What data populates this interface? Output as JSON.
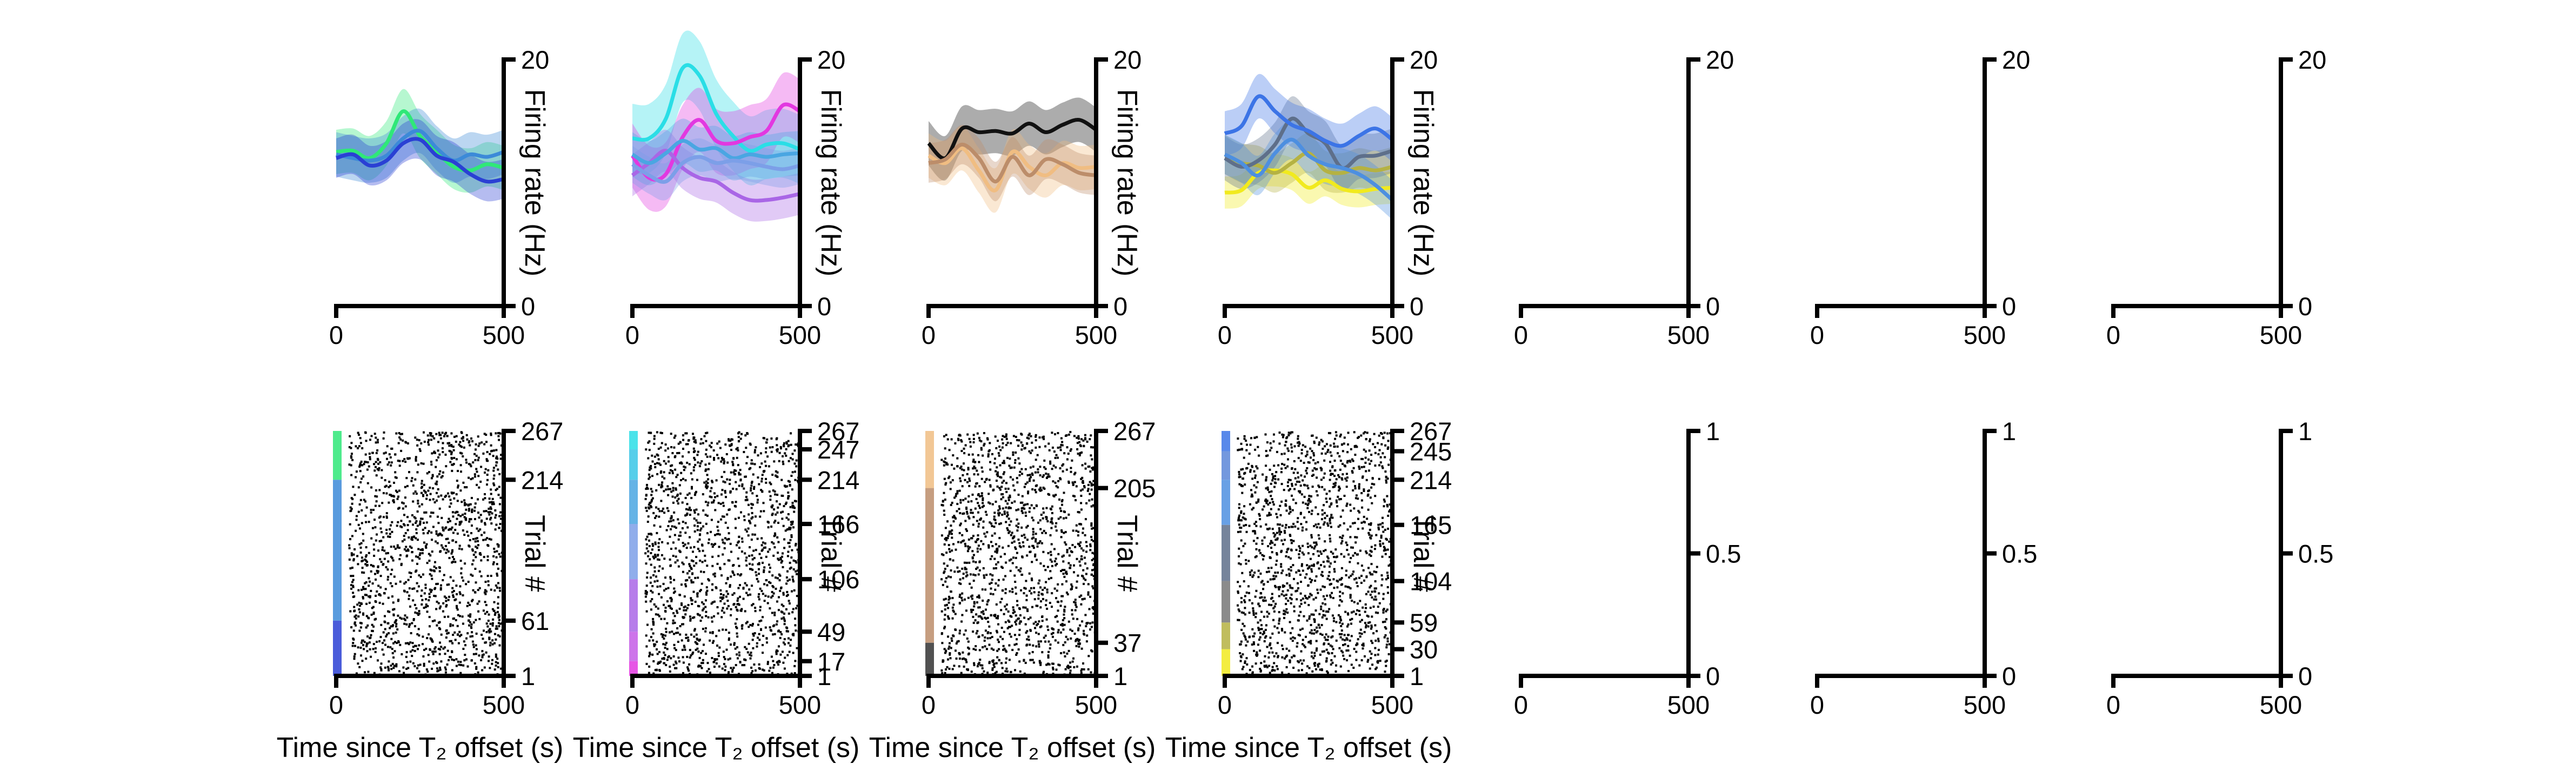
{
  "chart_data": {
    "type": "line",
    "layout": "2 rows x 7 columns",
    "top_row": {
      "ylabel": "Firing rate (Hz)",
      "ylim": [
        0,
        20
      ],
      "yticks": [
        "0",
        "20"
      ],
      "xlim": [
        0,
        500
      ],
      "xticks": [
        "0",
        "500"
      ],
      "panels": [
        {
          "series": [
            {
              "color": "#2fe878",
              "x": [
                0,
                50,
                100,
                150,
                200,
                250,
                300,
                350,
                400,
                450,
                500
              ],
              "y": [
                12.5,
                12.6,
                12.0,
                13.2,
                15.8,
                13.8,
                12.5,
                11.3,
                11.0,
                11.5,
                11.2
              ],
              "band": 1.8
            },
            {
              "color": "#3c8ad8",
              "x": [
                0,
                50,
                100,
                150,
                200,
                250,
                300,
                350,
                400,
                450,
                500
              ],
              "y": [
                12.3,
                12.0,
                11.8,
                12.2,
                13.6,
                14.2,
                12.8,
                11.8,
                12.3,
                12.1,
                12.5
              ],
              "band": 1.8
            },
            {
              "color": "#2a40d4",
              "x": [
                0,
                50,
                100,
                150,
                200,
                250,
                300,
                350,
                400,
                450,
                500
              ],
              "y": [
                12.0,
                12.3,
                11.4,
                11.8,
                13.2,
                13.5,
                12.2,
                11.7,
                10.7,
                10.1,
                10.3
              ],
              "band": 1.6
            }
          ]
        },
        {
          "series": [
            {
              "color": "#2adee6",
              "x": [
                0,
                50,
                100,
                150,
                200,
                250,
                300,
                350,
                400,
                450,
                500
              ],
              "y": [
                13.6,
                13.6,
                15.2,
                19.3,
                18.7,
                15.6,
                13.8,
                12.6,
                13.1,
                13.2,
                12.7
              ],
              "band": 2.8
            },
            {
              "color": "#e238e0",
              "x": [
                0,
                50,
                100,
                150,
                200,
                250,
                300,
                350,
                400,
                450,
                500
              ],
              "y": [
                12.2,
                10.4,
                10.7,
                13.7,
                15.1,
                13.4,
                13.2,
                13.7,
                14.2,
                16.3,
                15.8
              ],
              "band": 2.6
            },
            {
              "color": "#a966e6",
              "x": [
                0,
                50,
                100,
                150,
                200,
                250,
                300,
                350,
                400,
                450,
                500
              ],
              "y": [
                10.6,
                11.6,
                12.6,
                11.2,
                10.4,
                10.1,
                9.2,
                8.6,
                8.6,
                8.8,
                9.1
              ],
              "band": 1.7
            },
            {
              "color": "#4aa6e2",
              "x": [
                0,
                50,
                100,
                150,
                200,
                250,
                300,
                350,
                400,
                450,
                500
              ],
              "y": [
                12.3,
                11.6,
                12.4,
                13.4,
                12.7,
                12.8,
                12.0,
                12.3,
                12.1,
                12.3,
                12.4
              ],
              "band": 1.8
            },
            {
              "color": "#7c9fe8",
              "x": [
                0,
                50,
                100,
                150,
                200,
                250,
                300,
                350,
                400,
                450,
                500
              ],
              "y": [
                11.5,
                10.6,
                10.1,
                11.6,
                12.1,
                11.6,
                11.8,
                11.6,
                11.3,
                11.1,
                11.4
              ],
              "band": 1.5
            }
          ]
        },
        {
          "series": [
            {
              "color": "#111111",
              "x": [
                0,
                50,
                100,
                150,
                200,
                250,
                300,
                350,
                400,
                450,
                500
              ],
              "y": [
                13.2,
                12.0,
                14.4,
                14.1,
                14.2,
                14.0,
                14.8,
                14.1,
                14.7,
                15.1,
                14.3
              ],
              "band": 1.8
            },
            {
              "color": "#f0bd82",
              "x": [
                0,
                50,
                100,
                150,
                200,
                250,
                300,
                350,
                400,
                450,
                500
              ],
              "y": [
                12.2,
                11.6,
                12.8,
                11.0,
                9.4,
                12.5,
                11.3,
                10.6,
                11.6,
                11.2,
                11.3
              ],
              "band": 1.8
            },
            {
              "color": "#bc8d6a",
              "x": [
                0,
                50,
                100,
                150,
                200,
                250,
                300,
                350,
                400,
                450,
                500
              ],
              "y": [
                11.6,
                11.9,
                13.1,
                12.0,
                10.1,
                12.1,
                10.6,
                11.9,
                11.5,
                10.8,
                10.6
              ],
              "band": 1.6
            }
          ]
        },
        {
          "series": [
            {
              "color": "#f1ea1e",
              "x": [
                0,
                50,
                100,
                150,
                200,
                250,
                300,
                350,
                400,
                450,
                500
              ],
              "y": [
                9.2,
                9.4,
                10.8,
                11.0,
                10.7,
                9.6,
                10.2,
                9.5,
                9.3,
                9.5,
                9.6
              ],
              "band": 1.3
            },
            {
              "color": "#b5b242",
              "x": [
                0,
                50,
                100,
                150,
                200,
                250,
                300,
                350,
                400,
                450,
                500
              ],
              "y": [
                12.3,
                11.6,
                11.4,
                10.8,
                11.6,
                12.4,
                11.0,
                10.8,
                11.2,
                11.0,
                11.3
              ],
              "band": 1.6
            },
            {
              "color": "#5e6f8a",
              "x": [
                0,
                50,
                100,
                150,
                200,
                250,
                300,
                350,
                400,
                450,
                500
              ],
              "y": [
                12.0,
                11.3,
                11.8,
                13.1,
                15.2,
                14.0,
                13.2,
                11.2,
                12.1,
                12.2,
                12.6
              ],
              "band": 1.8
            },
            {
              "color": "#3c74e6",
              "x": [
                0,
                50,
                100,
                150,
                200,
                250,
                300,
                350,
                400,
                450,
                500
              ],
              "y": [
                14.0,
                14.6,
                17.0,
                15.8,
                14.7,
                14.2,
                13.4,
                13.0,
                13.8,
                14.4,
                13.5
              ],
              "band": 1.8
            },
            {
              "color": "#4d8fe0",
              "x": [
                0,
                50,
                100,
                150,
                200,
                250,
                300,
                350,
                400,
                450,
                500
              ],
              "y": [
                12.3,
                11.6,
                10.6,
                12.4,
                13.5,
                12.2,
                11.5,
                11.2,
                10.7,
                9.8,
                8.6
              ],
              "band": 1.6
            }
          ]
        },
        {
          "series": []
        },
        {
          "series": []
        },
        {
          "series": []
        }
      ]
    },
    "bottom_row": {
      "ylabel": "Trial #",
      "xlim": [
        0,
        500
      ],
      "xticks": [
        "0",
        "500"
      ],
      "xlabel": "Time since T₂ offset (s)",
      "panels": [
        {
          "ylim": [
            1,
            267
          ],
          "yticks": [
            "1",
            "61",
            "214",
            "267"
          ],
          "color_blocks": [
            {
              "from": 1,
              "to": 61,
              "color": "#2a40d4"
            },
            {
              "from": 61,
              "to": 214,
              "color": "#3c8ad8"
            },
            {
              "from": 214,
              "to": 267,
              "color": "#2fe878"
            }
          ],
          "xlabel": "Time since T₂ offset (s)"
        },
        {
          "ylim": [
            1,
            267
          ],
          "yticks": [
            "1",
            "17",
            "49",
            "106",
            "166",
            "214",
            "247",
            "267"
          ],
          "color_blocks": [
            {
              "from": 1,
              "to": 17,
              "color": "#e238e0"
            },
            {
              "from": 17,
              "to": 49,
              "color": "#c45ce6"
            },
            {
              "from": 49,
              "to": 106,
              "color": "#a966e6"
            },
            {
              "from": 106,
              "to": 166,
              "color": "#7c9fe8"
            },
            {
              "from": 166,
              "to": 214,
              "color": "#4aa6e2"
            },
            {
              "from": 214,
              "to": 247,
              "color": "#38c6e6"
            },
            {
              "from": 247,
              "to": 267,
              "color": "#2adee6"
            }
          ],
          "xlabel": "Time since T₂ offset (s)"
        },
        {
          "ylim": [
            1,
            267
          ],
          "yticks": [
            "1",
            "37",
            "205",
            "267"
          ],
          "color_blocks": [
            {
              "from": 1,
              "to": 37,
              "color": "#333333"
            },
            {
              "from": 37,
              "to": 205,
              "color": "#bc8d6a"
            },
            {
              "from": 205,
              "to": 267,
              "color": "#f0bd82"
            }
          ],
          "xlabel": "Time since T₂ offset (s)"
        },
        {
          "ylim": [
            1,
            267
          ],
          "yticks": [
            "1",
            "30",
            "59",
            "104",
            "165",
            "214",
            "245",
            "267"
          ],
          "color_blocks": [
            {
              "from": 1,
              "to": 30,
              "color": "#f1ea1e"
            },
            {
              "from": 30,
              "to": 59,
              "color": "#b5b242"
            },
            {
              "from": 59,
              "to": 104,
              "color": "#777777"
            },
            {
              "from": 104,
              "to": 165,
              "color": "#5e6f8a"
            },
            {
              "from": 165,
              "to": 214,
              "color": "#4d8fe0"
            },
            {
              "from": 214,
              "to": 245,
              "color": "#5b86d8"
            },
            {
              "from": 245,
              "to": 267,
              "color": "#3c74e6"
            }
          ],
          "xlabel": "Time since T₂ offset (s)"
        },
        {
          "ylim": [
            0,
            1
          ],
          "yticks": [
            "0",
            "0.5",
            "1"
          ],
          "color_blocks": [],
          "xlabel": ""
        },
        {
          "ylim": [
            0,
            1
          ],
          "yticks": [
            "0",
            "0.5",
            "1"
          ],
          "color_blocks": [],
          "xlabel": ""
        },
        {
          "ylim": [
            0,
            1
          ],
          "yticks": [
            "0",
            "0.5",
            "1"
          ],
          "color_blocks": [],
          "xlabel": ""
        }
      ]
    },
    "grid": false,
    "legend": "none"
  }
}
